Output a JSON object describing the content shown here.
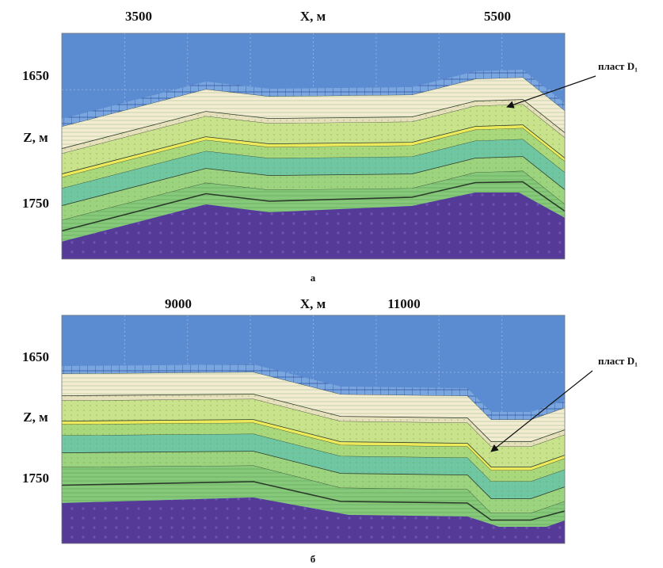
{
  "panels": [
    {
      "x_label": "X, м",
      "x_ticks": [
        "3500",
        "5500"
      ],
      "y_label": "Z, м",
      "y_ticks": [
        "1650",
        "1750"
      ],
      "annotation": "пласт D₁",
      "caption": "а"
    },
    {
      "x_label": "X, м",
      "x_ticks": [
        "9000",
        "11000"
      ],
      "y_label": "Z, м",
      "y_ticks": [
        "1650",
        "1750"
      ],
      "annotation": "пласт D₁",
      "caption": "б"
    }
  ]
}
